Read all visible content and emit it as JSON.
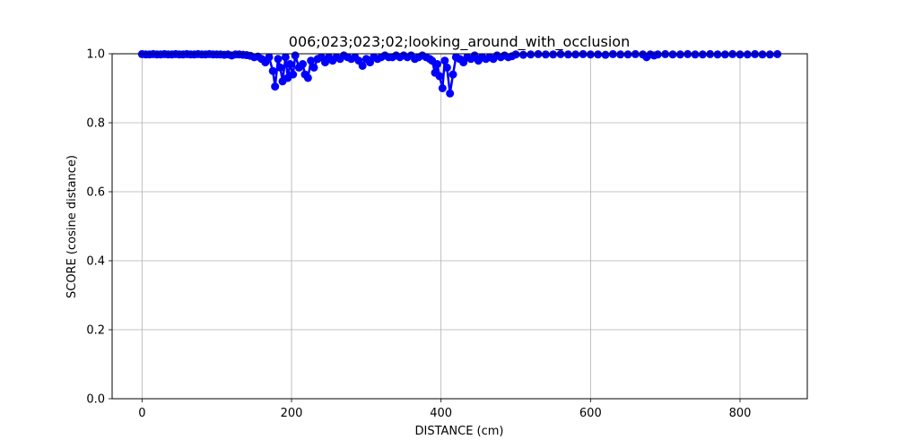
{
  "chart_data": {
    "type": "line",
    "title": "006;023;023;02;looking_around_with_occlusion",
    "xlabel": "DISTANCE (cm)",
    "ylabel": "SCORE (cosine distance)",
    "xlim": [
      -40,
      890
    ],
    "ylim": [
      0.0,
      1.0
    ],
    "xticks": [
      0,
      200,
      400,
      600,
      800
    ],
    "yticks": [
      0.0,
      0.2,
      0.4,
      0.6,
      0.8,
      1.0
    ],
    "grid": true,
    "legend": "none",
    "series": [
      {
        "color": "#0000ff",
        "marker": "circle",
        "x": [
          0,
          5,
          10,
          15,
          20,
          25,
          30,
          35,
          40,
          45,
          50,
          55,
          60,
          65,
          70,
          75,
          80,
          85,
          90,
          95,
          100,
          105,
          110,
          115,
          120,
          125,
          130,
          135,
          140,
          145,
          150,
          155,
          160,
          165,
          170,
          175,
          178,
          182,
          185,
          188,
          192,
          195,
          198,
          202,
          205,
          210,
          215,
          218,
          222,
          226,
          230,
          235,
          240,
          245,
          250,
          255,
          260,
          265,
          270,
          275,
          280,
          285,
          290,
          295,
          300,
          305,
          310,
          315,
          320,
          325,
          330,
          335,
          340,
          345,
          350,
          355,
          360,
          365,
          370,
          375,
          380,
          385,
          388,
          392,
          395,
          398,
          402,
          405,
          408,
          412,
          416,
          420,
          425,
          430,
          435,
          440,
          445,
          450,
          455,
          460,
          465,
          470,
          475,
          480,
          485,
          490,
          495,
          500,
          510,
          520,
          530,
          540,
          550,
          560,
          570,
          580,
          590,
          600,
          610,
          620,
          630,
          640,
          650,
          660,
          670,
          675,
          680,
          685,
          690,
          700,
          710,
          720,
          730,
          740,
          750,
          760,
          770,
          780,
          790,
          800,
          810,
          820,
          830,
          840,
          850
        ],
        "y": [
          0.999,
          0.998,
          0.998,
          0.999,
          0.998,
          0.998,
          0.999,
          0.998,
          0.998,
          0.999,
          0.998,
          0.998,
          0.999,
          0.998,
          0.998,
          0.999,
          0.998,
          0.998,
          0.999,
          0.998,
          0.998,
          0.998,
          0.997,
          0.998,
          0.995,
          0.998,
          0.998,
          0.997,
          0.996,
          0.994,
          0.99,
          0.992,
          0.985,
          0.975,
          0.99,
          0.95,
          0.905,
          0.985,
          0.96,
          0.92,
          0.99,
          0.93,
          0.97,
          0.94,
          0.995,
          0.96,
          0.97,
          0.94,
          0.93,
          0.98,
          0.96,
          0.985,
          0.99,
          0.975,
          0.99,
          0.98,
          0.99,
          0.985,
          0.995,
          0.99,
          0.985,
          0.99,
          0.98,
          0.965,
          0.985,
          0.975,
          0.99,
          0.985,
          0.99,
          0.995,
          0.99,
          0.99,
          0.995,
          0.99,
          0.995,
          0.99,
          0.995,
          0.985,
          0.99,
          0.995,
          0.99,
          0.985,
          0.98,
          0.945,
          0.97,
          0.935,
          0.9,
          0.98,
          0.96,
          0.885,
          0.94,
          0.99,
          0.985,
          0.975,
          0.99,
          0.985,
          0.995,
          0.98,
          0.99,
          0.985,
          0.99,
          0.985,
          0.995,
          0.99,
          0.995,
          0.99,
          0.993,
          0.998,
          0.997,
          0.998,
          0.999,
          0.998,
          0.998,
          0.999,
          0.998,
          0.998,
          0.999,
          0.998,
          0.998,
          0.997,
          0.999,
          0.998,
          0.998,
          0.999,
          0.998,
          0.99,
          0.998,
          0.995,
          0.998,
          0.999,
          0.998,
          0.998,
          0.999,
          0.998,
          0.998,
          0.999,
          0.998,
          0.998,
          0.999,
          0.998,
          0.998,
          0.999,
          0.998,
          0.998,
          0.999
        ]
      }
    ]
  }
}
